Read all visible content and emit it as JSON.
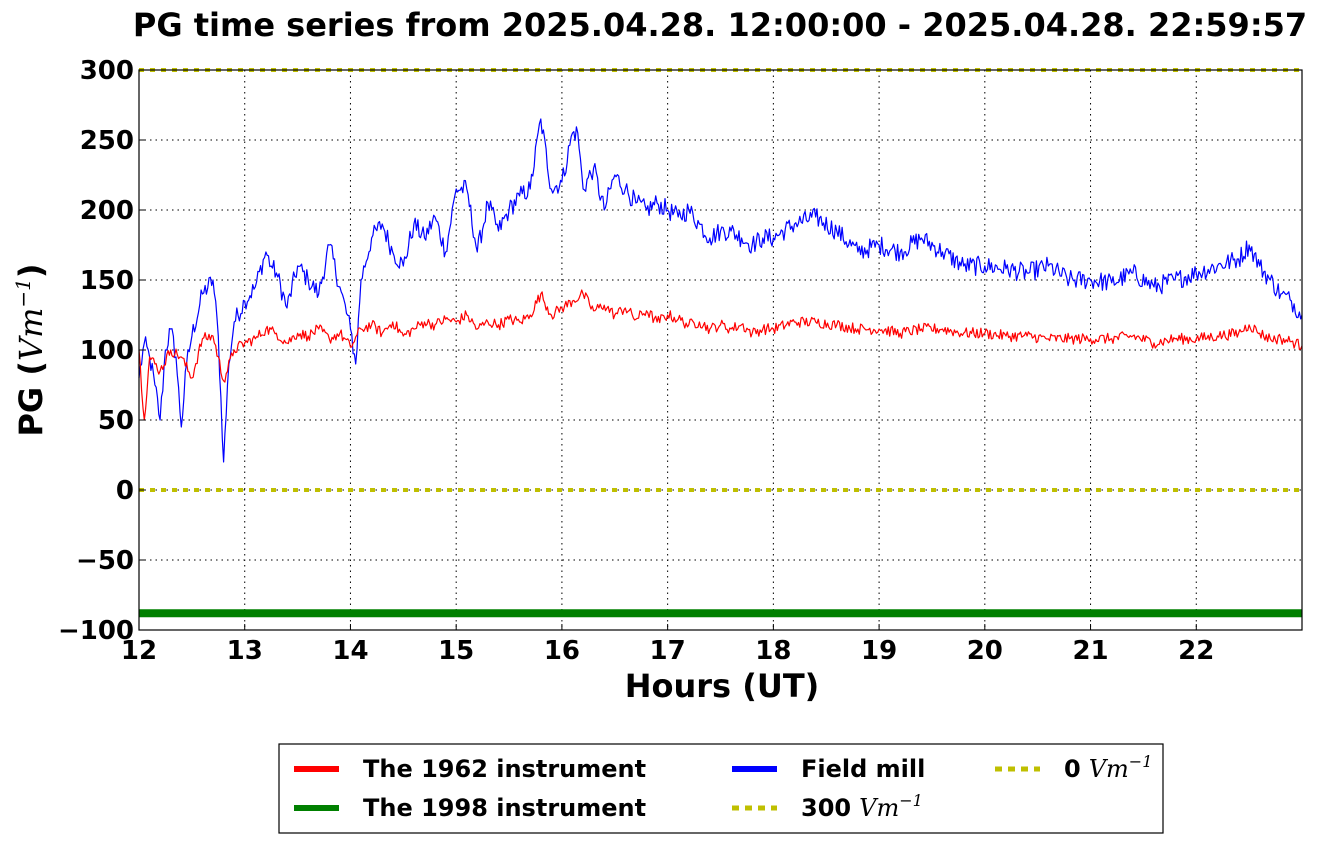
{
  "chart_data": {
    "type": "line",
    "title": "PG time series from 2025.04.28. 12:00:00 - 2025.04.28. 22:59:57",
    "xlabel": "Hours (UT)",
    "ylabel": {
      "prefix": "PG (",
      "math": "Vm",
      "sup": "−1",
      "suffix": ")"
    },
    "xlim": [
      12,
      23
    ],
    "ylim": [
      -100,
      300
    ],
    "xticks": [
      "12",
      "13",
      "14",
      "15",
      "16",
      "17",
      "18",
      "19",
      "20",
      "21",
      "22"
    ],
    "yticks": [
      "300",
      "250",
      "200",
      "150",
      "100",
      "50",
      "0",
      "−50",
      "−100"
    ],
    "grid": true,
    "legend_position": "bottom-center",
    "colors": {
      "red": "#ff0000",
      "blue": "#0000ff",
      "green": "#008000",
      "yellow": "#bfbf00"
    },
    "series": [
      {
        "name": "The 1962 instrument",
        "color": "#ff0000",
        "style": "solid",
        "x": [
          12.0,
          12.05,
          12.1,
          12.2,
          12.3,
          12.4,
          12.5,
          12.6,
          12.7,
          12.8,
          12.9,
          13.0,
          13.1,
          13.2,
          13.3,
          13.4,
          13.5,
          13.6,
          13.7,
          13.8,
          13.9,
          14.0,
          14.1,
          14.2,
          14.3,
          14.4,
          14.5,
          14.6,
          14.7,
          14.8,
          14.9,
          15.0,
          15.1,
          15.2,
          15.3,
          15.4,
          15.5,
          15.6,
          15.7,
          15.8,
          15.9,
          16.0,
          16.1,
          16.2,
          16.3,
          16.4,
          16.5,
          16.6,
          16.7,
          16.8,
          16.9,
          17.0,
          17.1,
          17.2,
          17.3,
          17.4,
          17.5,
          17.6,
          17.7,
          17.8,
          17.9,
          18.0,
          18.2,
          18.4,
          18.6,
          18.8,
          19.0,
          19.2,
          19.4,
          19.6,
          19.8,
          20.0,
          20.2,
          20.4,
          20.6,
          20.8,
          21.0,
          21.2,
          21.4,
          21.6,
          21.8,
          22.0,
          22.2,
          22.4,
          22.5,
          22.6,
          22.7,
          22.8,
          22.9,
          23.0
        ],
        "values": [
          100,
          50,
          95,
          85,
          100,
          95,
          80,
          108,
          110,
          78,
          100,
          105,
          108,
          115,
          112,
          105,
          112,
          110,
          115,
          108,
          112,
          102,
          115,
          118,
          112,
          120,
          110,
          115,
          120,
          118,
          122,
          120,
          125,
          115,
          120,
          118,
          122,
          120,
          125,
          140,
          125,
          130,
          135,
          140,
          128,
          132,
          125,
          130,
          122,
          128,
          120,
          125,
          122,
          118,
          120,
          115,
          118,
          115,
          118,
          112,
          115,
          115,
          120,
          120,
          118,
          115,
          115,
          112,
          115,
          115,
          112,
          112,
          110,
          110,
          108,
          108,
          108,
          108,
          110,
          105,
          108,
          108,
          110,
          112,
          118,
          112,
          108,
          108,
          106,
          103
        ]
      },
      {
        "name": "Field mill",
        "color": "#0000ff",
        "style": "solid",
        "x": [
          12.0,
          12.05,
          12.1,
          12.15,
          12.2,
          12.25,
          12.3,
          12.35,
          12.4,
          12.45,
          12.5,
          12.6,
          12.7,
          12.75,
          12.8,
          12.85,
          12.9,
          13.0,
          13.1,
          13.2,
          13.25,
          13.3,
          13.4,
          13.5,
          13.6,
          13.7,
          13.8,
          13.9,
          14.0,
          14.05,
          14.1,
          14.2,
          14.3,
          14.4,
          14.5,
          14.6,
          14.7,
          14.8,
          14.9,
          15.0,
          15.1,
          15.2,
          15.3,
          15.4,
          15.5,
          15.6,
          15.7,
          15.8,
          15.9,
          16.0,
          16.1,
          16.15,
          16.2,
          16.3,
          16.4,
          16.5,
          16.6,
          16.7,
          16.8,
          16.9,
          17.0,
          17.1,
          17.2,
          17.3,
          17.4,
          17.5,
          17.6,
          17.7,
          17.8,
          17.9,
          18.0,
          18.2,
          18.4,
          18.6,
          18.8,
          19.0,
          19.2,
          19.4,
          19.6,
          19.8,
          20.0,
          20.2,
          20.4,
          20.6,
          20.8,
          21.0,
          21.2,
          21.4,
          21.6,
          21.8,
          22.0,
          22.2,
          22.4,
          22.5,
          22.6,
          22.7,
          22.8,
          22.9,
          23.0
        ],
        "values": [
          80,
          105,
          95,
          75,
          50,
          100,
          115,
          95,
          45,
          90,
          110,
          140,
          150,
          110,
          20,
          90,
          120,
          135,
          145,
          170,
          160,
          155,
          130,
          160,
          150,
          140,
          175,
          145,
          115,
          90,
          150,
          180,
          190,
          170,
          160,
          190,
          180,
          195,
          170,
          215,
          215,
          170,
          205,
          185,
          200,
          210,
          215,
          265,
          215,
          220,
          255,
          255,
          215,
          230,
          200,
          225,
          215,
          205,
          200,
          205,
          200,
          195,
          200,
          190,
          180,
          185,
          185,
          180,
          175,
          180,
          180,
          190,
          195,
          185,
          170,
          175,
          170,
          180,
          170,
          160,
          160,
          158,
          155,
          160,
          150,
          150,
          148,
          155,
          145,
          150,
          155,
          160,
          165,
          175,
          160,
          150,
          140,
          135,
          125
        ]
      },
      {
        "name": "The 1998 instrument",
        "color": "#008000",
        "style": "solid",
        "x": [
          12,
          23
        ],
        "values": [
          -88,
          -88
        ]
      },
      {
        "name": "300 Vm⁻¹",
        "legend_label": "300",
        "color": "#bfbf00",
        "style": "dotted",
        "x": [
          12,
          23
        ],
        "values": [
          300,
          300
        ]
      },
      {
        "name": "0 Vm⁻¹",
        "legend_label": "0",
        "color": "#bfbf00",
        "style": "dotted",
        "x": [
          12,
          23
        ],
        "values": [
          0,
          0
        ]
      }
    ],
    "legend": {
      "unit": "Vm",
      "unit_sup": "−1",
      "entries": [
        {
          "label": "The 1962 instrument",
          "color": "#ff0000",
          "style": "solid",
          "has_unit": false
        },
        {
          "label": "The 1998 instrument",
          "color": "#008000",
          "style": "solid",
          "has_unit": false
        },
        {
          "label": "Field mill",
          "color": "#0000ff",
          "style": "solid",
          "has_unit": false
        },
        {
          "label": "300",
          "color": "#bfbf00",
          "style": "dotted",
          "has_unit": true
        },
        {
          "label": "0",
          "color": "#bfbf00",
          "style": "dotted",
          "has_unit": true
        }
      ]
    }
  }
}
